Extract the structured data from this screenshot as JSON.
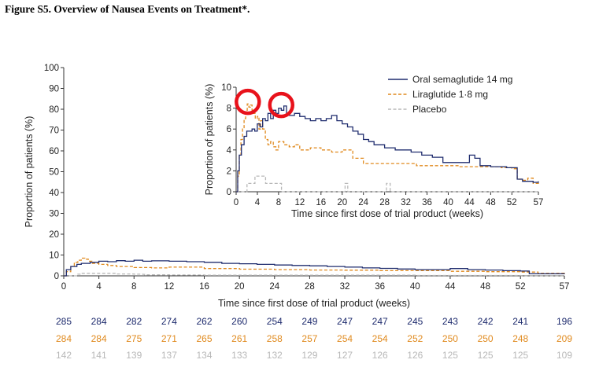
{
  "figure": {
    "title": "Figure S5. Overview of Nausea Events on Treatment*."
  },
  "colors": {
    "oral": "#1f2c6e",
    "lira": "#e08a1e",
    "placebo": "#b8b8b8",
    "circle": "#e8121b"
  },
  "chart_data": [
    {
      "type": "line",
      "name": "main",
      "xlabel": "Time since first dose of trial product (weeks)",
      "ylabel": "Proportion of patients (%)",
      "xlim": [
        0,
        57
      ],
      "ylim": [
        0,
        100
      ],
      "xticks": [
        0,
        4,
        8,
        12,
        16,
        20,
        24,
        28,
        32,
        36,
        40,
        44,
        48,
        52,
        57
      ],
      "yticks": [
        0,
        10,
        20,
        30,
        40,
        50,
        60,
        70,
        80,
        90,
        100
      ],
      "series": [
        {
          "name": "Oral semaglutide 14 mg",
          "style": "solid",
          "x": [
            0,
            0.3,
            0.8,
            1.5,
            2,
            3,
            4,
            5,
            6,
            7,
            8,
            9,
            10,
            12,
            14,
            16,
            18,
            20,
            22,
            24,
            26,
            28,
            30,
            32,
            34,
            36,
            38,
            40,
            42,
            44,
            46,
            48,
            50,
            52,
            53,
            55,
            57
          ],
          "y": [
            0,
            3,
            4.5,
            5.5,
            6,
            6.5,
            7,
            6.8,
            7.3,
            7,
            7.5,
            7,
            7.2,
            7,
            6.8,
            6.5,
            6,
            5.8,
            5.5,
            5.2,
            5,
            4.8,
            4.5,
            4.2,
            3.8,
            3.6,
            3.3,
            3,
            3,
            3.5,
            3,
            2.8,
            2.5,
            2.3,
            1,
            1,
            0.8
          ]
        },
        {
          "name": "Liraglutide 1·8 mg",
          "style": "dashed",
          "x": [
            0,
            0.3,
            0.8,
            1.2,
            1.6,
            2,
            2.4,
            2.8,
            3.2,
            4,
            5,
            6,
            8,
            10,
            12,
            16,
            20,
            24,
            28,
            32,
            36,
            40,
            44,
            48,
            52,
            54,
            57
          ],
          "y": [
            0,
            2,
            4.5,
            6.5,
            7.5,
            8.5,
            8,
            7,
            6,
            5.5,
            5,
            4.5,
            4,
            3.8,
            4.2,
            3.5,
            3.2,
            3,
            2.8,
            2.7,
            2.5,
            2.5,
            2.2,
            2,
            1.8,
            1.2,
            0.6
          ]
        },
        {
          "name": "Placebo",
          "style": "dashed",
          "x": [
            0,
            1.5,
            1.6,
            2,
            4,
            6,
            8,
            9,
            9.2,
            12,
            14,
            16,
            20,
            24,
            28,
            32,
            36,
            40,
            44,
            48,
            52,
            57
          ],
          "y": [
            0,
            0,
            0.8,
            1.2,
            1.2,
            0.9,
            0.8,
            0.7,
            0.5,
            0.4,
            0.4,
            0.3,
            0.3,
            0.3,
            0.3,
            0.3,
            0.3,
            0.2,
            0.2,
            0.2,
            0.1,
            0
          ]
        }
      ],
      "at_risk": [
        {
          "series": "Oral semaglutide 14 mg",
          "values": [
            285,
            284,
            282,
            274,
            262,
            260,
            254,
            249,
            247,
            247,
            245,
            243,
            242,
            241,
            196
          ]
        },
        {
          "series": "Liraglutide 1·8 mg",
          "values": [
            284,
            284,
            275,
            271,
            265,
            261,
            258,
            257,
            254,
            254,
            252,
            250,
            250,
            248,
            209
          ]
        },
        {
          "series": "Placebo",
          "values": [
            142,
            141,
            139,
            137,
            134,
            133,
            132,
            129,
            127,
            126,
            126,
            125,
            125,
            125,
            109
          ]
        }
      ]
    },
    {
      "type": "line",
      "name": "inset",
      "xlabel": "Time since first dose of trial product (weeks)",
      "ylabel": "Proportion of patients (%)",
      "xlim": [
        0,
        57
      ],
      "ylim": [
        0,
        10
      ],
      "xticks": [
        0,
        4,
        8,
        12,
        16,
        20,
        24,
        28,
        32,
        36,
        40,
        44,
        48,
        52,
        57
      ],
      "yticks": [
        0,
        2,
        4,
        6,
        8,
        10
      ],
      "legend": {
        "position": "top-right",
        "entries": [
          "Oral semaglutide 14 mg",
          "Liraglutide 1·8 mg",
          "Placebo"
        ]
      },
      "annotations": [
        {
          "type": "circle",
          "x": 2.2,
          "y": 8.6
        },
        {
          "type": "circle",
          "x": 8.5,
          "y": 8.3
        }
      ],
      "series": [
        {
          "name": "Oral semaglutide 14 mg",
          "style": "solid",
          "x": [
            0,
            0.3,
            0.6,
            1,
            1.5,
            2,
            3,
            3.5,
            4,
            4.5,
            5,
            5.5,
            6,
            6.5,
            7,
            7.5,
            8,
            8.5,
            9,
            9.5,
            10,
            11,
            12,
            13,
            14,
            15,
            16,
            17,
            18,
            19,
            20,
            21,
            22,
            23,
            24,
            25,
            26,
            27,
            28,
            29,
            30,
            31,
            32,
            33,
            34,
            35,
            36,
            37,
            38,
            39,
            40,
            41,
            42,
            43,
            44,
            45,
            46,
            47,
            48,
            49,
            50,
            51,
            52,
            53,
            54,
            55,
            56,
            57
          ],
          "y": [
            0,
            2,
            3.5,
            4.5,
            5.3,
            5.8,
            6,
            5.8,
            6.5,
            6.2,
            7,
            6.8,
            7.5,
            7,
            7.8,
            7.5,
            8,
            7.8,
            8.2,
            7.5,
            7.3,
            7.5,
            7.2,
            7,
            6.8,
            7,
            6.8,
            7,
            7.3,
            6.8,
            6.5,
            6.2,
            5.8,
            5.5,
            5,
            4.8,
            4.5,
            4.5,
            4.2,
            4.2,
            4,
            4,
            4,
            3.8,
            3.8,
            3.5,
            3.5,
            3.3,
            3.3,
            2.8,
            2.8,
            2.8,
            2.8,
            2.8,
            3.5,
            3.2,
            2.5,
            2.5,
            2.4,
            2.4,
            2.4,
            2.3,
            2.3,
            1.2,
            1,
            1,
            0.9,
            1
          ]
        },
        {
          "name": "Liraglutide 1·8 mg",
          "style": "dashed",
          "x": [
            0,
            0.3,
            0.6,
            0.9,
            1.2,
            1.5,
            1.8,
            2.1,
            2.4,
            2.7,
            3,
            3.3,
            3.6,
            4,
            4.3,
            4.6,
            5,
            5.5,
            6,
            6.5,
            7,
            7.5,
            8,
            9,
            10,
            11,
            12,
            14,
            16,
            18,
            20,
            22,
            24,
            26,
            28,
            30,
            32,
            34,
            36,
            38,
            40,
            42,
            44,
            46,
            48,
            50,
            52,
            53,
            54,
            55,
            56,
            57
          ],
          "y": [
            0,
            1.5,
            3.5,
            5,
            6,
            7,
            7.8,
            8.4,
            8.1,
            8.3,
            7.8,
            7.5,
            7,
            7.2,
            6,
            6.8,
            6,
            5,
            4.5,
            4.8,
            4.3,
            4,
            4.8,
            4.5,
            4.3,
            4.5,
            4,
            4.2,
            4,
            3.8,
            4,
            3.2,
            2.7,
            2.7,
            2.7,
            2.7,
            2.7,
            2.5,
            2.5,
            2.5,
            2.5,
            2.4,
            2.4,
            2.4,
            2.4,
            2.3,
            2.2,
            1.2,
            1.1,
            1.3,
            0.8,
            0.7
          ]
        },
        {
          "name": "Placebo",
          "style": "dashed",
          "x": [
            0,
            2,
            2.05,
            2.5,
            3.5,
            3.55,
            5.5,
            5.55,
            8.5,
            8.55,
            20.5,
            20.55,
            21,
            21.05,
            28.3,
            28.35,
            29,
            29.05,
            57
          ],
          "y": [
            0,
            0,
            0.8,
            0.8,
            0.8,
            1.5,
            1.5,
            0.8,
            0.8,
            0,
            0,
            0.8,
            0.8,
            0,
            0,
            0.8,
            0.8,
            0,
            0
          ]
        }
      ]
    }
  ]
}
